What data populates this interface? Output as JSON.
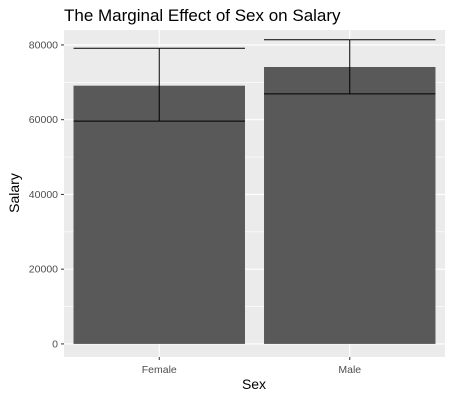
{
  "chart_data": {
    "type": "bar",
    "title": "The Marginal Effect of Sex on Salary",
    "xlabel": "Sex",
    "ylabel": "Salary",
    "categories": [
      "Female",
      "Male"
    ],
    "values": [
      69100,
      74100
    ],
    "error_bars": [
      {
        "lower": 59600,
        "upper": 79100
      },
      {
        "lower": 66900,
        "upper": 81400
      }
    ],
    "ylim": [
      -3500,
      84000
    ],
    "yticks": [
      0,
      20000,
      40000,
      60000,
      80000
    ],
    "ytick_labels": [
      "0",
      "20000",
      "40000",
      "60000",
      "80000"
    ],
    "grid": true,
    "colors": {
      "panel": "#ebebeb",
      "grid_major": "#ffffff",
      "bar": "#595959",
      "errorbar": "#000000"
    }
  }
}
